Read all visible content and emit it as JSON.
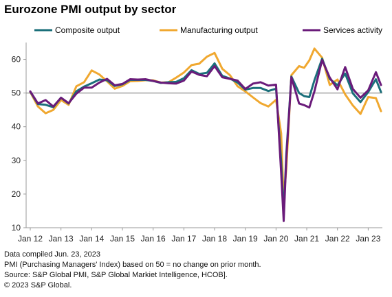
{
  "title": "Eurozone PMI output by sector",
  "notes": [
    "Data compiled Jun. 23, 2023",
    "PMI (Purchasing Managers' Index) based on 50 = no change on prior month.",
    "Source: S&P Global PMI, S&P Global Markiet Intelligence, HCOB].",
    "© 2023 S&P Global."
  ],
  "chart_data": {
    "type": "line",
    "x_ticks": [
      "Jan 12",
      "Jan 13",
      "Jan 14",
      "Jan 15",
      "Jan 16",
      "Jan 17",
      "Jan 18",
      "Jan 19",
      "Jan 20",
      "Jan 21",
      "Jan 22",
      "Jan 23"
    ],
    "x_range": [
      "2012-01",
      "2023-06"
    ],
    "ylim": [
      10,
      65
    ],
    "y_ticks": [
      10,
      20,
      30,
      40,
      50,
      60
    ],
    "reference_line": 50,
    "legend_position": "top",
    "series": [
      {
        "name": "Composite output",
        "color": "#1a6f7a",
        "points": [
          [
            "2012-01",
            50.4
          ],
          [
            "2012-04",
            46.7
          ],
          [
            "2012-07",
            46.5
          ],
          [
            "2012-10",
            45.8
          ],
          [
            "2013-01",
            48.6
          ],
          [
            "2013-04",
            46.9
          ],
          [
            "2013-07",
            50.5
          ],
          [
            "2013-10",
            51.9
          ],
          [
            "2014-01",
            52.9
          ],
          [
            "2014-04",
            54.0
          ],
          [
            "2014-07",
            53.8
          ],
          [
            "2014-10",
            52.1
          ],
          [
            "2015-01",
            52.6
          ],
          [
            "2015-04",
            53.9
          ],
          [
            "2015-07",
            53.9
          ],
          [
            "2015-10",
            53.9
          ],
          [
            "2016-01",
            53.6
          ],
          [
            "2016-04",
            53.0
          ],
          [
            "2016-07",
            53.2
          ],
          [
            "2016-10",
            53.3
          ],
          [
            "2017-01",
            54.4
          ],
          [
            "2017-04",
            56.8
          ],
          [
            "2017-07",
            55.7
          ],
          [
            "2017-10",
            56.0
          ],
          [
            "2018-01",
            58.8
          ],
          [
            "2018-04",
            55.1
          ],
          [
            "2018-07",
            54.3
          ],
          [
            "2018-10",
            53.1
          ],
          [
            "2019-01",
            51.0
          ],
          [
            "2019-04",
            51.5
          ],
          [
            "2019-07",
            51.5
          ],
          [
            "2019-10",
            50.6
          ],
          [
            "2020-01",
            51.3
          ],
          [
            "2020-03",
            29.7
          ],
          [
            "2020-04",
            13.6
          ],
          [
            "2020-05",
            31.9
          ],
          [
            "2020-07",
            54.9
          ],
          [
            "2020-10",
            50.0
          ],
          [
            "2020-12",
            49.1
          ],
          [
            "2021-02",
            48.8
          ],
          [
            "2021-04",
            53.8
          ],
          [
            "2021-07",
            60.2
          ],
          [
            "2021-10",
            54.2
          ],
          [
            "2022-01",
            52.3
          ],
          [
            "2022-04",
            55.8
          ],
          [
            "2022-07",
            49.9
          ],
          [
            "2022-10",
            47.3
          ],
          [
            "2023-01",
            50.3
          ],
          [
            "2023-04",
            54.1
          ],
          [
            "2023-06",
            50.3
          ]
        ]
      },
      {
        "name": "Manufacturing output",
        "color": "#f0a830",
        "points": [
          [
            "2012-01",
            50.3
          ],
          [
            "2012-04",
            46.0
          ],
          [
            "2012-07",
            44.0
          ],
          [
            "2012-10",
            45.0
          ],
          [
            "2013-01",
            47.9
          ],
          [
            "2013-04",
            46.5
          ],
          [
            "2013-07",
            52.0
          ],
          [
            "2013-10",
            53.2
          ],
          [
            "2014-01",
            56.7
          ],
          [
            "2014-04",
            55.5
          ],
          [
            "2014-07",
            53.5
          ],
          [
            "2014-10",
            51.3
          ],
          [
            "2015-01",
            52.1
          ],
          [
            "2015-04",
            53.5
          ],
          [
            "2015-07",
            53.6
          ],
          [
            "2015-10",
            53.8
          ],
          [
            "2016-01",
            53.8
          ],
          [
            "2016-04",
            53.1
          ],
          [
            "2016-07",
            53.2
          ],
          [
            "2016-10",
            54.6
          ],
          [
            "2017-01",
            56.1
          ],
          [
            "2017-04",
            58.3
          ],
          [
            "2017-07",
            58.7
          ],
          [
            "2017-10",
            60.8
          ],
          [
            "2018-01",
            61.9
          ],
          [
            "2018-04",
            57.2
          ],
          [
            "2018-07",
            55.3
          ],
          [
            "2018-10",
            52.0
          ],
          [
            "2019-01",
            50.5
          ],
          [
            "2019-04",
            48.7
          ],
          [
            "2019-07",
            47.0
          ],
          [
            "2019-10",
            46.0
          ],
          [
            "2020-01",
            48.0
          ],
          [
            "2020-03",
            38.0
          ],
          [
            "2020-04",
            18.1
          ],
          [
            "2020-05",
            27.5
          ],
          [
            "2020-07",
            55.3
          ],
          [
            "2020-10",
            58.0
          ],
          [
            "2020-12",
            57.5
          ],
          [
            "2021-02",
            59.7
          ],
          [
            "2021-04",
            63.2
          ],
          [
            "2021-07",
            60.5
          ],
          [
            "2021-10",
            52.4
          ],
          [
            "2022-01",
            54.0
          ],
          [
            "2022-04",
            49.6
          ],
          [
            "2022-07",
            46.3
          ],
          [
            "2022-10",
            43.8
          ],
          [
            "2023-01",
            48.8
          ],
          [
            "2023-04",
            48.5
          ],
          [
            "2023-06",
            44.6
          ]
        ]
      },
      {
        "name": "Services activity",
        "color": "#6a1b7a",
        "points": [
          [
            "2012-01",
            50.5
          ],
          [
            "2012-04",
            46.9
          ],
          [
            "2012-07",
            47.9
          ],
          [
            "2012-10",
            46.0
          ],
          [
            "2013-01",
            48.6
          ],
          [
            "2013-04",
            47.0
          ],
          [
            "2013-07",
            49.8
          ],
          [
            "2013-10",
            51.6
          ],
          [
            "2014-01",
            51.6
          ],
          [
            "2014-04",
            53.1
          ],
          [
            "2014-07",
            54.2
          ],
          [
            "2014-10",
            52.3
          ],
          [
            "2015-01",
            52.7
          ],
          [
            "2015-04",
            54.1
          ],
          [
            "2015-07",
            54.0
          ],
          [
            "2015-10",
            54.1
          ],
          [
            "2016-01",
            53.6
          ],
          [
            "2016-04",
            53.1
          ],
          [
            "2016-07",
            52.9
          ],
          [
            "2016-10",
            52.8
          ],
          [
            "2017-01",
            53.7
          ],
          [
            "2017-04",
            56.4
          ],
          [
            "2017-07",
            55.4
          ],
          [
            "2017-10",
            55.0
          ],
          [
            "2018-01",
            58.0
          ],
          [
            "2018-04",
            54.7
          ],
          [
            "2018-07",
            54.2
          ],
          [
            "2018-10",
            53.7
          ],
          [
            "2019-01",
            51.2
          ],
          [
            "2019-04",
            52.8
          ],
          [
            "2019-07",
            53.2
          ],
          [
            "2019-10",
            52.2
          ],
          [
            "2020-01",
            52.5
          ],
          [
            "2020-03",
            26.4
          ],
          [
            "2020-04",
            12.0
          ],
          [
            "2020-05",
            30.5
          ],
          [
            "2020-07",
            54.7
          ],
          [
            "2020-10",
            46.9
          ],
          [
            "2020-12",
            46.4
          ],
          [
            "2021-02",
            45.7
          ],
          [
            "2021-04",
            50.5
          ],
          [
            "2021-07",
            59.8
          ],
          [
            "2021-10",
            54.6
          ],
          [
            "2022-01",
            51.1
          ],
          [
            "2022-04",
            57.7
          ],
          [
            "2022-07",
            51.2
          ],
          [
            "2022-10",
            48.6
          ],
          [
            "2023-01",
            50.8
          ],
          [
            "2023-04",
            56.2
          ],
          [
            "2023-06",
            52.4
          ]
        ]
      }
    ]
  }
}
